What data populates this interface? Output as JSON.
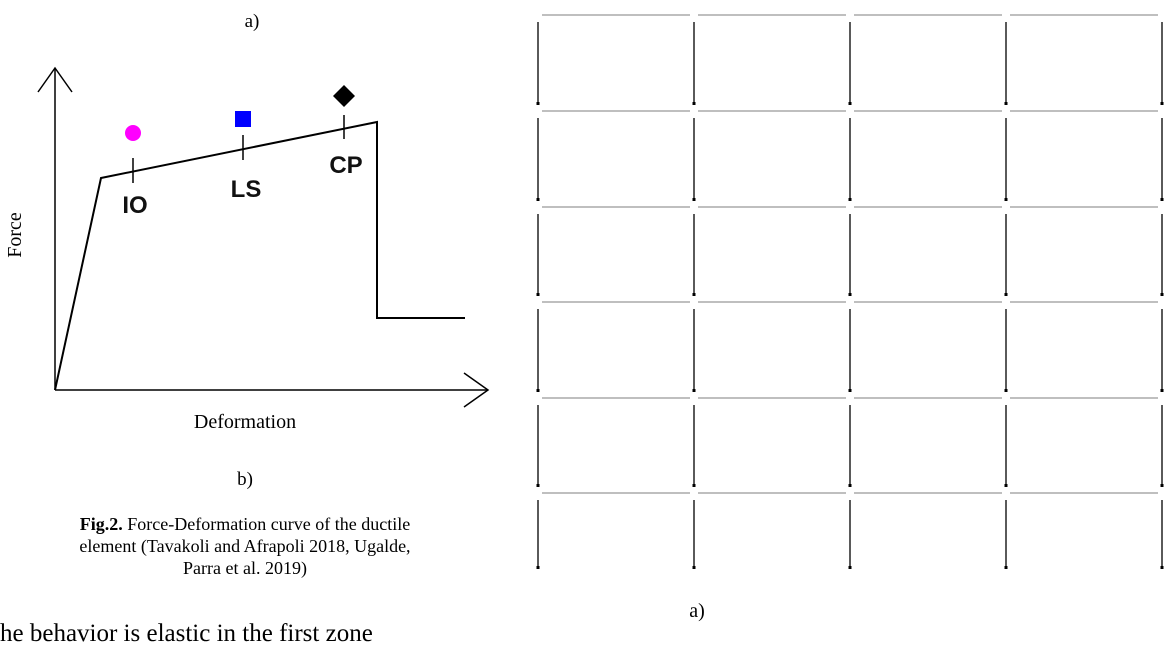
{
  "figure_left": {
    "label_top": "a)",
    "y_axis_label": "Force",
    "x_axis_label": "Deformation",
    "points": [
      "IO",
      "LS",
      "CP"
    ],
    "label_bottom": "b)"
  },
  "caption": {
    "prefix": "Fig.2.",
    "lines": [
      " Force-Deformation curve of the ductile",
      "element (Tavakoli and Afrapoli 2018, Ugalde,",
      "Parra et al. 2019)"
    ]
  },
  "body_text": "he behavior is elastic in the first zone",
  "figure_right": {
    "label": "a)"
  }
}
